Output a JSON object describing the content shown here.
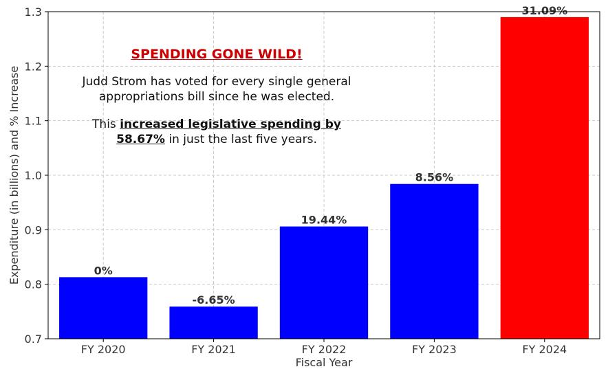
{
  "chart_data": {
    "type": "bar",
    "categories": [
      "FY 2020",
      "FY 2021",
      "FY 2022",
      "FY 2023",
      "FY 2024"
    ],
    "values": [
      0.813,
      0.759,
      0.906,
      0.984,
      1.29
    ],
    "bar_labels": [
      "0%",
      "-6.65%",
      "19.44%",
      "8.56%",
      "31.09%"
    ],
    "bar_colors": [
      "#0000ff",
      "#0000ff",
      "#0000ff",
      "#0000ff",
      "#ff0000"
    ],
    "xlabel": "Fiscal Year",
    "ylabel": "Expenditure (in billions) and % Increase",
    "ylim": [
      0.7,
      1.3
    ],
    "yticks": [
      "0.7",
      "0.8",
      "0.9",
      "1.0",
      "1.1",
      "1.2",
      "1.3"
    ],
    "grid": true
  },
  "annotation": {
    "headline": "SPENDING GONE WILD!",
    "line1": "Judd Strom has voted for every single general",
    "line2": "appropriations bill since he was elected.",
    "line3_pre": "This ",
    "line3_bold": "increased legislative spending by",
    "line4_bold": "58.67%",
    "line4_post": " in just the last five years."
  }
}
